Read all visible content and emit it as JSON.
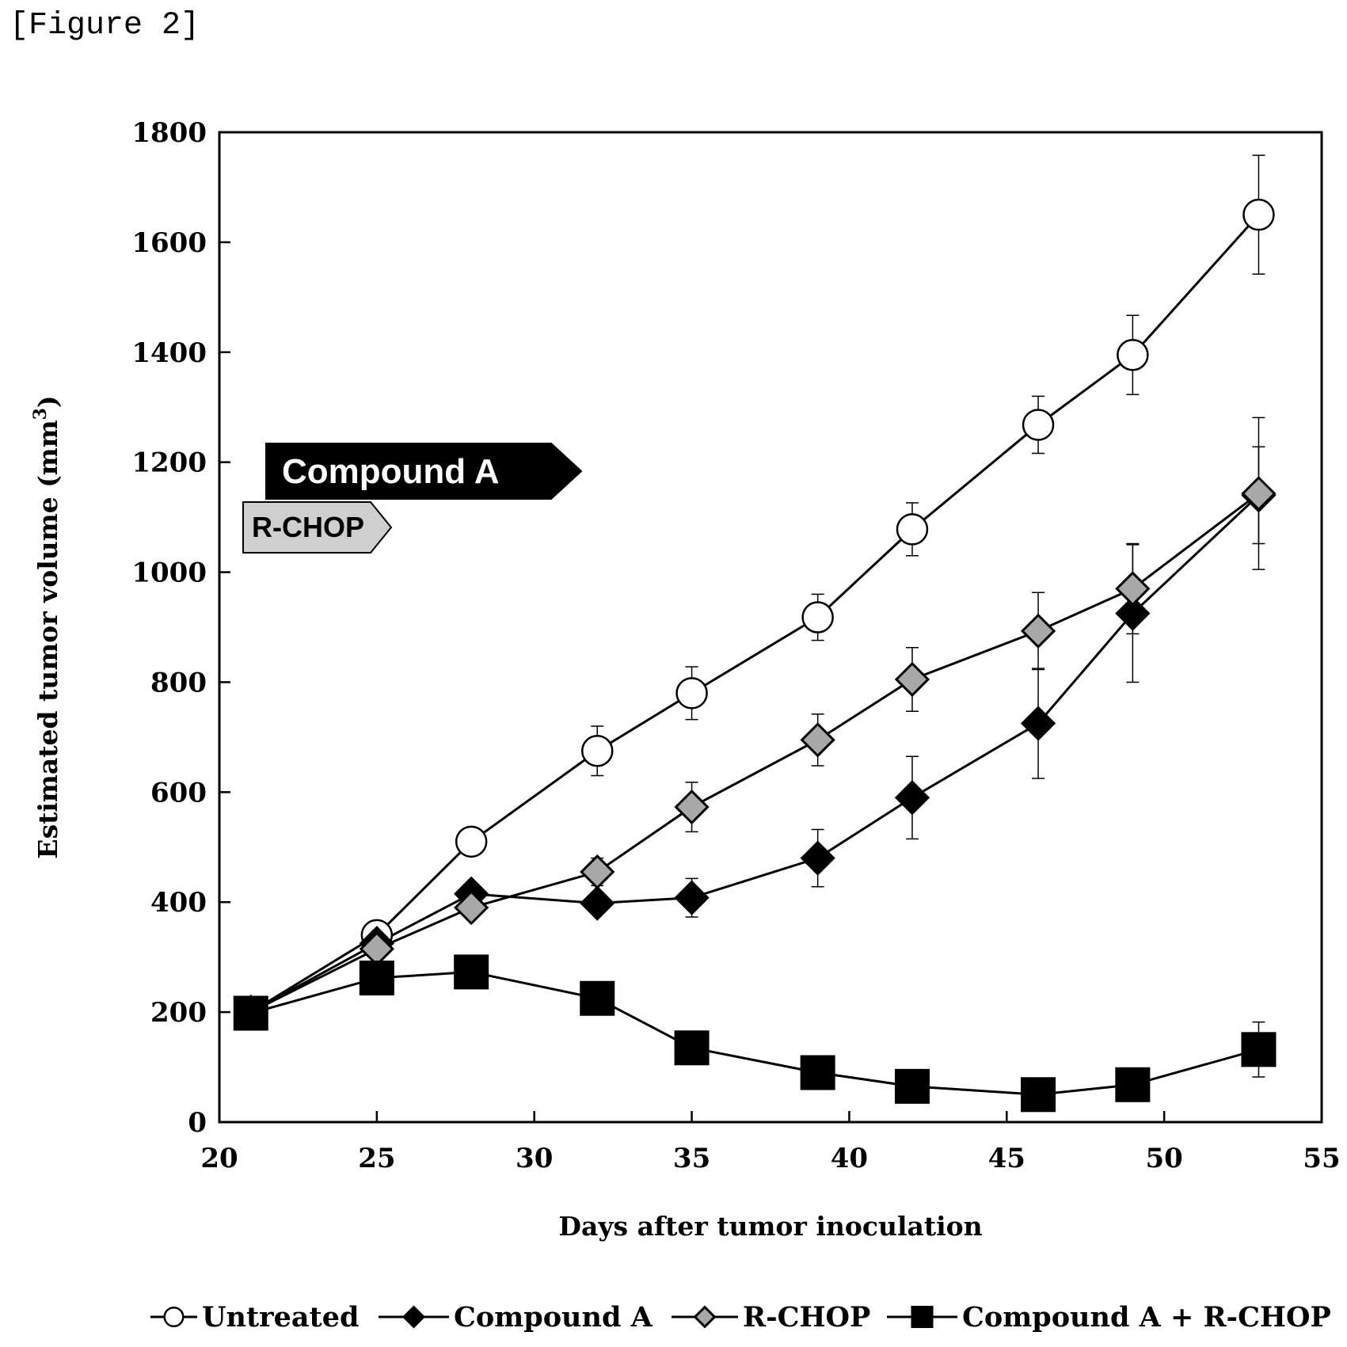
{
  "figure_label": "[Figure 2]",
  "chart_data": {
    "type": "line",
    "xlabel": "Days after tumor inoculation",
    "ylabel": "Estimated tumor volume (mm",
    "ylabel_sup": "3",
    "ylabel_close": ")",
    "xlim": [
      20,
      55
    ],
    "ylim": [
      0,
      1800
    ],
    "xticks": [
      20,
      25,
      30,
      35,
      40,
      45,
      50,
      55
    ],
    "yticks": [
      0,
      200,
      400,
      600,
      800,
      1000,
      1200,
      1400,
      1600,
      1800
    ],
    "grid": false,
    "legend_position": "bottom",
    "treatment_labels": [
      {
        "text": "Compound A",
        "fill": "#000000",
        "text_color": "#ffffff"
      },
      {
        "text": "R-CHOP",
        "fill": "#cccccc",
        "text_color": "#000000"
      }
    ],
    "series": [
      {
        "name": "Untreated",
        "marker": "circle-open",
        "color": "#000000",
        "marker_fill": "#ffffff",
        "x": [
          21,
          25,
          28,
          32,
          35,
          39,
          42,
          46,
          49,
          53
        ],
        "y": [
          200,
          340,
          510,
          675,
          780,
          918,
          1078,
          1268,
          1395,
          1650
        ],
        "err": [
          0,
          0,
          0,
          45,
          48,
          42,
          48,
          52,
          72,
          108
        ]
      },
      {
        "name": "Compound A",
        "marker": "diamond-filled",
        "color": "#000000",
        "marker_fill": "#000000",
        "x": [
          21,
          25,
          28,
          32,
          35,
          39,
          42,
          46,
          49,
          53
        ],
        "y": [
          200,
          325,
          415,
          398,
          408,
          480,
          590,
          725,
          925,
          1140
        ],
        "err": [
          0,
          0,
          0,
          0,
          35,
          52,
          75,
          100,
          125,
          88
        ]
      },
      {
        "name": "R-CHOP",
        "marker": "diamond-gray",
        "color": "#000000",
        "marker_fill": "#a8a8a8",
        "x": [
          21,
          25,
          28,
          32,
          35,
          39,
          42,
          46,
          49,
          53
        ],
        "y": [
          200,
          315,
          390,
          455,
          573,
          695,
          805,
          893,
          970,
          1143
        ],
        "err": [
          0,
          0,
          0,
          25,
          45,
          47,
          58,
          70,
          82,
          138
        ]
      },
      {
        "name": "Compound A + R-CHOP",
        "marker": "square-filled",
        "color": "#000000",
        "marker_fill": "#000000",
        "x": [
          21,
          25,
          28,
          32,
          35,
          39,
          42,
          46,
          49,
          53
        ],
        "y": [
          198,
          262,
          273,
          225,
          135,
          90,
          65,
          50,
          68,
          132
        ],
        "err": [
          0,
          0,
          0,
          0,
          0,
          0,
          0,
          0,
          0,
          50
        ]
      }
    ]
  }
}
